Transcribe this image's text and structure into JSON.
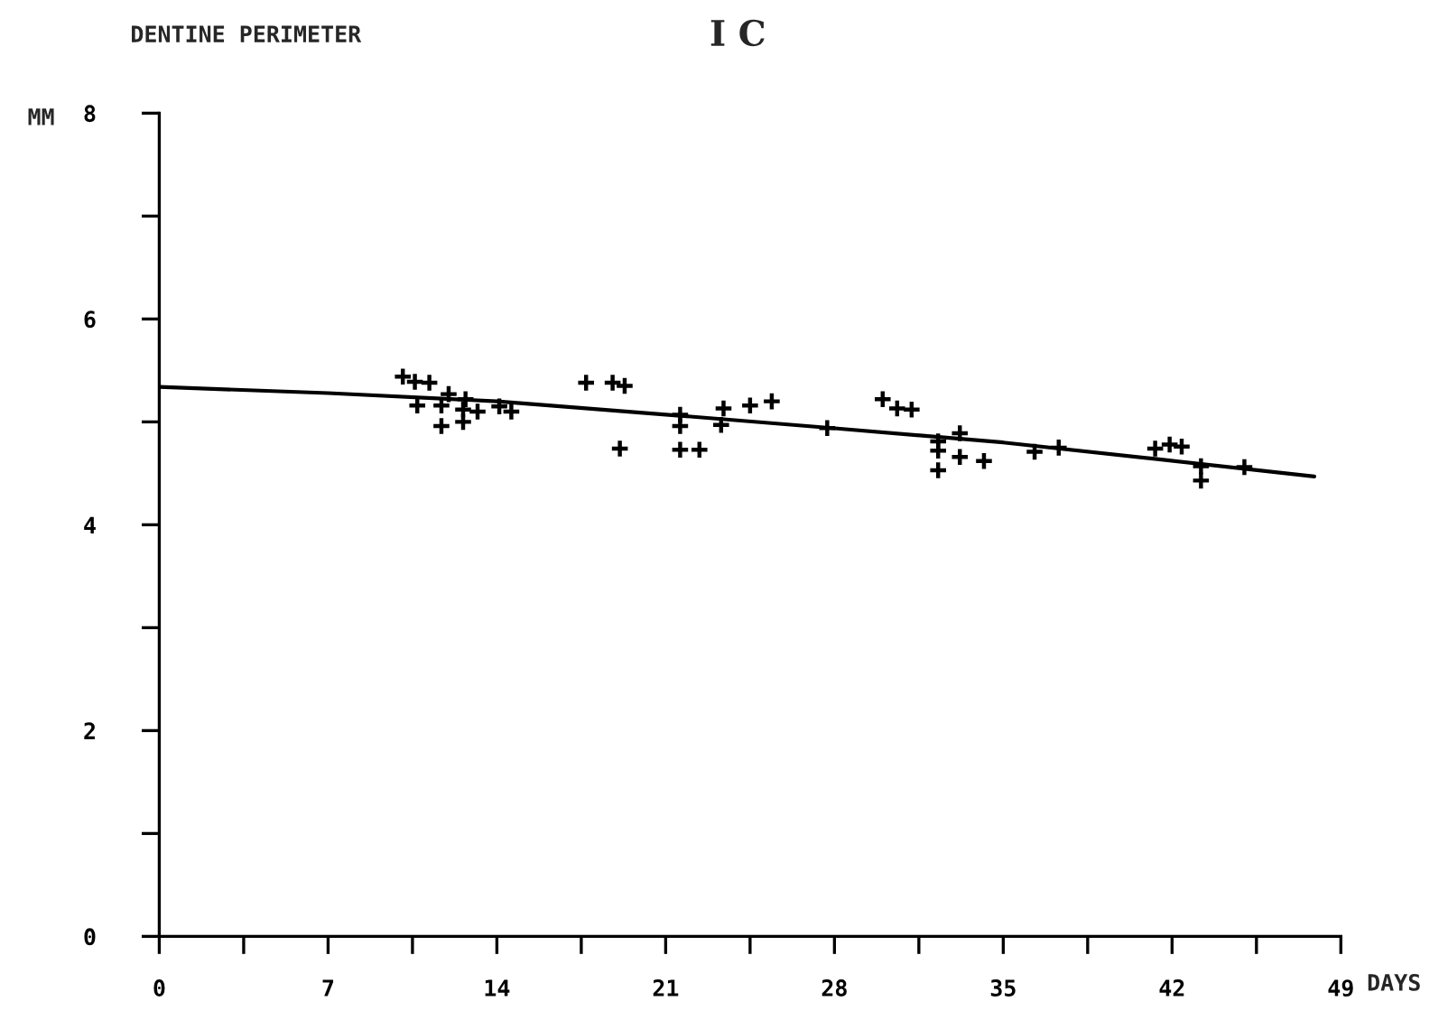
{
  "chart_data": {
    "type": "scatter",
    "title": "DENTINE PERIMETER",
    "subtitle": "I C",
    "xlabel": "DAYS",
    "ylabel": "MM",
    "xlim": [
      0,
      49
    ],
    "ylim": [
      0,
      8
    ],
    "xticks": [
      0,
      {
        "value": 3.5,
        "label": null
      },
      7,
      {
        "value": 10.5,
        "label": null
      },
      14,
      {
        "value": 17.5,
        "label": null
      },
      21,
      {
        "value": 24.5,
        "label": null
      },
      28,
      {
        "value": 31.5,
        "label": null
      },
      35,
      {
        "value": 38.5,
        "label": null
      },
      42,
      {
        "value": 45.5,
        "label": null
      },
      49
    ],
    "yticks": [
      0,
      {
        "value": 1,
        "label": null
      },
      2,
      {
        "value": 3,
        "label": null
      },
      4,
      {
        "value": 5,
        "label": null
      },
      6,
      {
        "value": 7,
        "label": null
      },
      8
    ],
    "grid": false,
    "legend": false,
    "series": [
      {
        "marker": "cross",
        "color": "#000000",
        "x": [
          10.1,
          10.6,
          11.2,
          10.7,
          12.0,
          11.7,
          11.7,
          12.7,
          12.6,
          12.6,
          13.2,
          14.1,
          14.6,
          17.7,
          18.8,
          19.3,
          19.1,
          21.6,
          21.6,
          21.6,
          22.4,
          23.4,
          23.3,
          24.5,
          25.4,
          27.7,
          30.0,
          30.6,
          31.2,
          32.3,
          32.3,
          32.3,
          33.2,
          33.2,
          34.2,
          36.3,
          37.3,
          41.3,
          41.9,
          42.4,
          43.2,
          43.2,
          45.0
        ],
        "values": [
          5.44,
          5.39,
          5.38,
          5.16,
          5.27,
          5.16,
          4.96,
          5.22,
          5.12,
          5.0,
          5.1,
          5.15,
          5.1,
          5.38,
          5.38,
          5.35,
          4.74,
          5.07,
          4.96,
          4.73,
          4.73,
          5.13,
          4.97,
          5.16,
          5.2,
          4.94,
          5.22,
          5.13,
          5.12,
          4.81,
          4.72,
          4.53,
          4.89,
          4.66,
          4.62,
          4.71,
          4.75,
          4.74,
          4.78,
          4.76,
          4.57,
          4.43,
          4.56
        ]
      },
      {
        "type": "line",
        "marker": "none",
        "line_style": "solid",
        "color": "#000000",
        "x": [
          0,
          7,
          14,
          21.6,
          27.9,
          35,
          41.3,
          47.9
        ],
        "values": [
          5.34,
          5.28,
          5.2,
          5.06,
          4.94,
          4.8,
          4.64,
          4.47
        ]
      }
    ]
  }
}
